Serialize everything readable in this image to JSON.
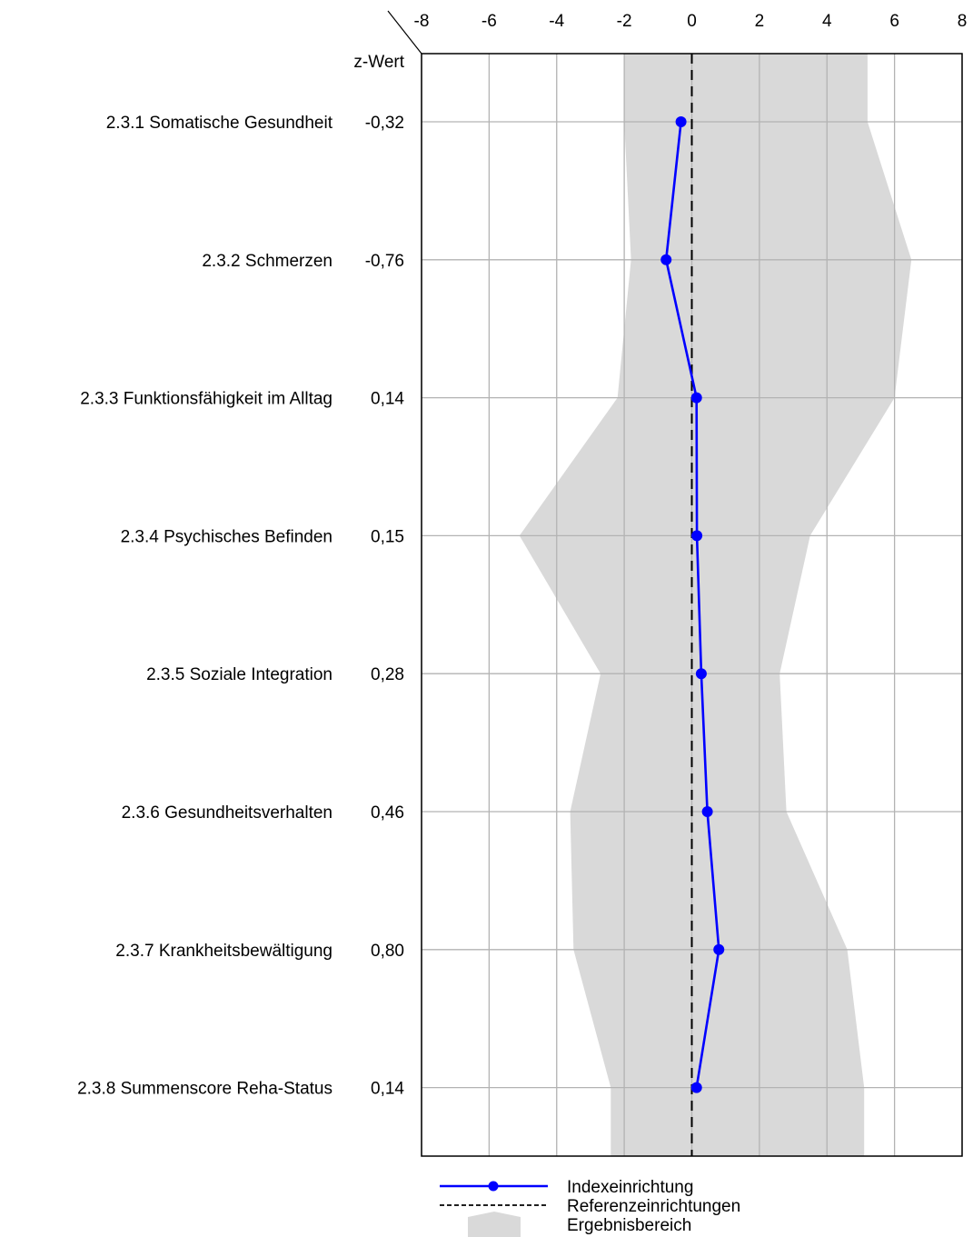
{
  "chart_data": {
    "type": "line",
    "orientation": "vertical-categories",
    "value_column_header": "z-Wert",
    "xlim": [
      -8,
      8
    ],
    "xticks": [
      -8,
      -6,
      -4,
      -2,
      0,
      2,
      4,
      6,
      8
    ],
    "xtick_labels": [
      "-8",
      "-6",
      "-4",
      "-2",
      "0",
      "2",
      "4",
      "6",
      "8"
    ],
    "grid": true,
    "categories": [
      "2.3.1 Somatische Gesundheit",
      "2.3.2 Schmerzen",
      "2.3.3 Funktionsfähigkeit im Alltag",
      "2.3.4 Psychisches Befinden",
      "2.3.5 Soziale Integration",
      "2.3.6 Gesundheitsverhalten",
      "2.3.7 Krankheitsbewältigung",
      "2.3.8 Summenscore Reha-Status"
    ],
    "value_labels": [
      "-0,32",
      "-0,76",
      "0,14",
      "0,15",
      "0,28",
      "0,46",
      "0,80",
      "0,14"
    ],
    "series": [
      {
        "name": "Indexeinrichtung",
        "values": [
          -0.32,
          -0.76,
          0.14,
          0.15,
          0.28,
          0.46,
          0.8,
          0.14
        ],
        "color": "#0000ff"
      }
    ],
    "reference": {
      "name": "Referenzeinrichtungen",
      "value": 0,
      "color": "#000000"
    },
    "result_range": {
      "name": "Ergebnisbereich",
      "color": "#d9d9d9",
      "top": {
        "lower": -2.0,
        "upper": 5.2
      },
      "lower": [
        -2.0,
        -1.8,
        -2.2,
        -5.1,
        -2.7,
        -3.6,
        -3.5,
        -2.4
      ],
      "upper": [
        5.2,
        6.5,
        6.0,
        3.5,
        2.6,
        2.8,
        4.6,
        5.1
      ],
      "bottom": {
        "lower": -2.4,
        "upper": 5.1
      }
    },
    "legend": {
      "placement": "bottom-center",
      "entries": [
        "Indexeinrichtung",
        "Referenzeinrichtungen",
        "Ergebnisbereich"
      ]
    }
  }
}
